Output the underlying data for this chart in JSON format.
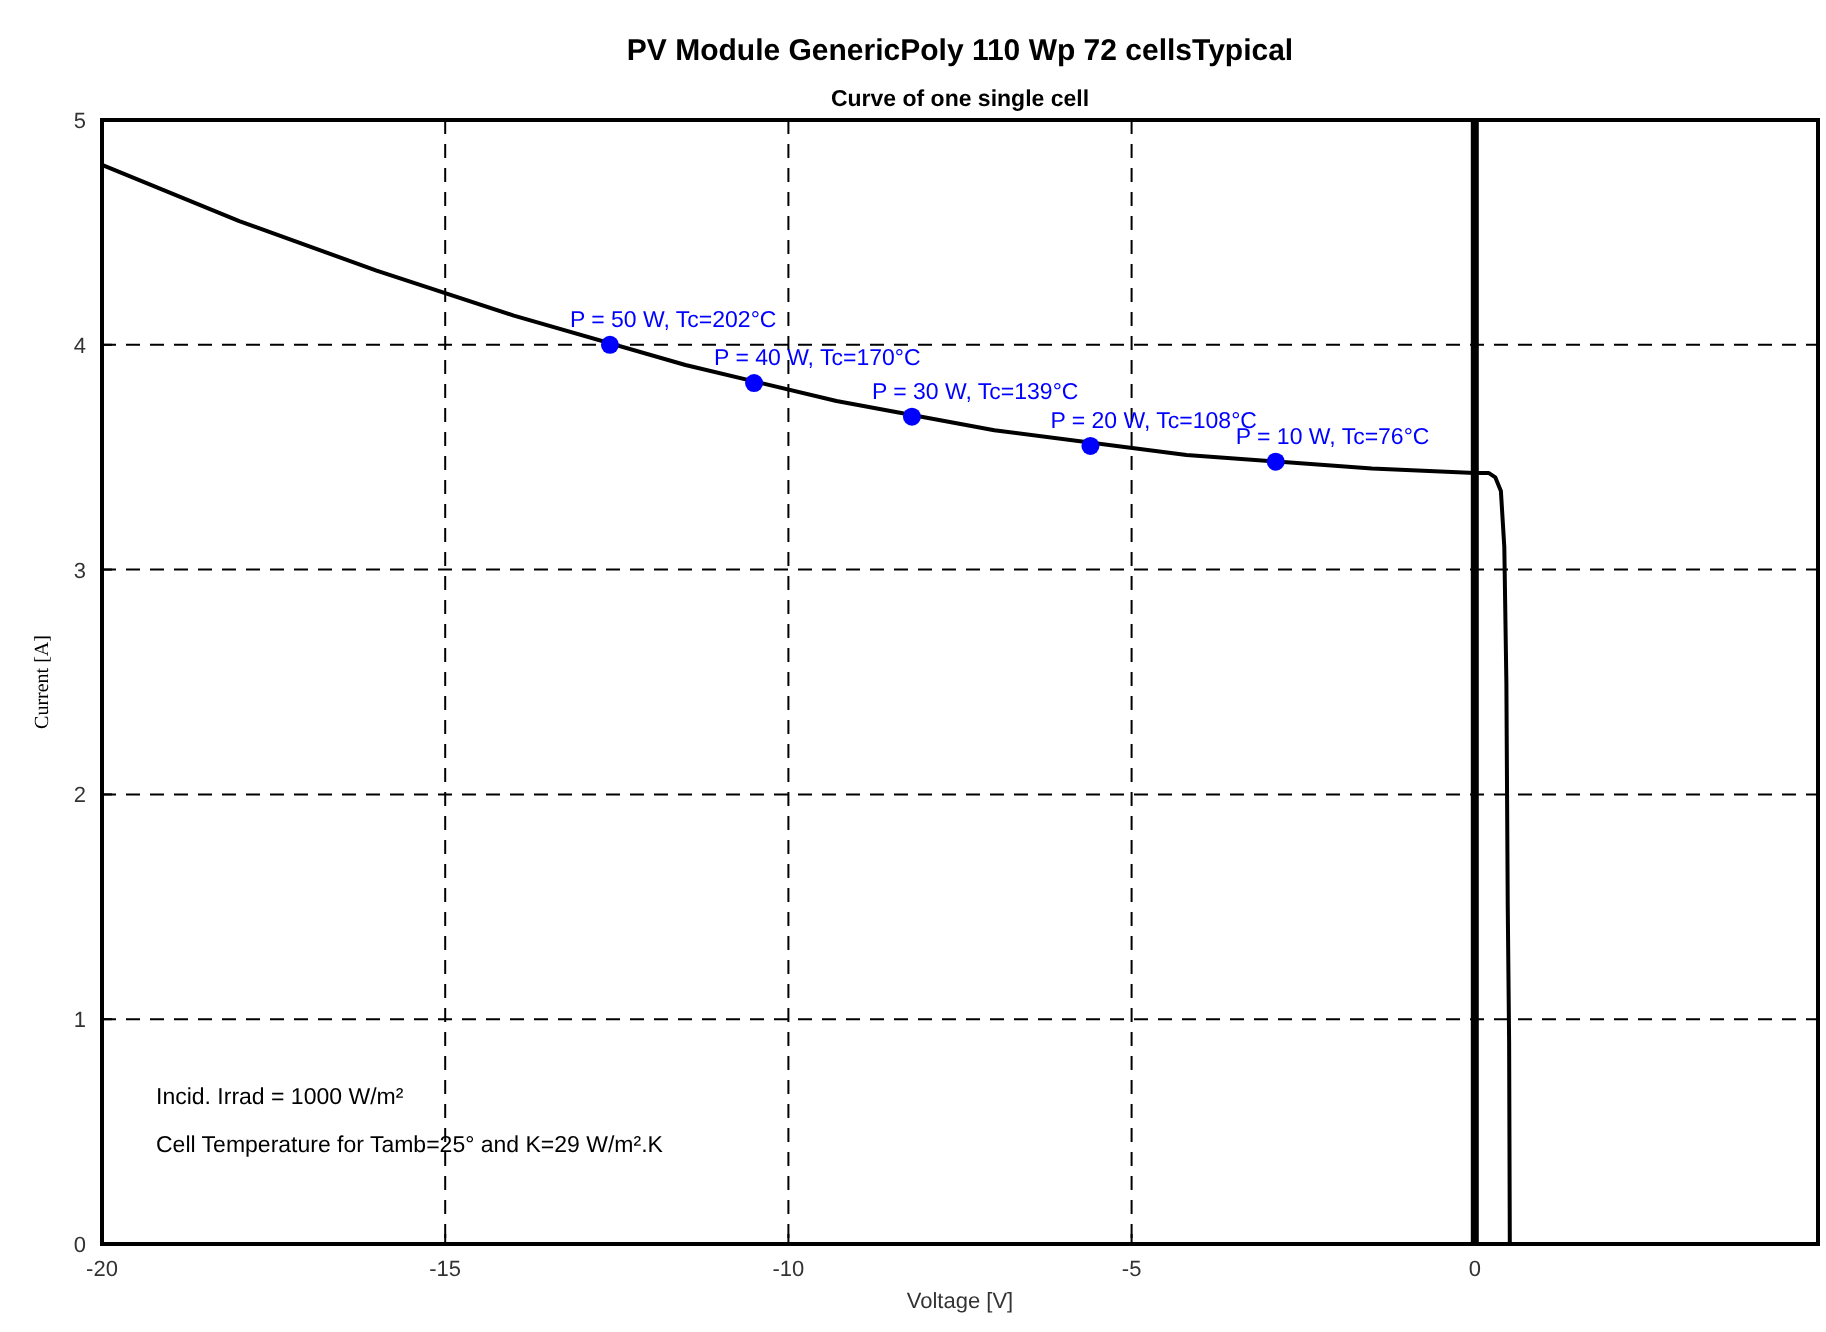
{
  "chart_data": {
    "type": "line",
    "title": "PV Module   GenericPoly 110 Wp  72 cellsTypical",
    "subtitle": "Curve of one single cell",
    "xlabel": "Voltage [V]",
    "ylabel": "Current [A]",
    "xlim": [
      -20,
      5
    ],
    "xticks": [
      -20,
      -15,
      -10,
      -5,
      0
    ],
    "ylim": [
      0,
      5
    ],
    "yticks": [
      0,
      1,
      2,
      3,
      4,
      5
    ],
    "grid": true,
    "series": [
      {
        "color": "#000000",
        "marker": "none",
        "x": [
          -20,
          -18,
          -16,
          -14,
          -11.5,
          -9.3,
          -7,
          -4.2,
          -1.5,
          0,
          0.2,
          0.3,
          0.38,
          0.43,
          0.46,
          0.48,
          0.5,
          0.51
        ],
        "values": [
          4.8,
          4.55,
          4.33,
          4.13,
          3.91,
          3.75,
          3.62,
          3.51,
          3.45,
          3.43,
          3.43,
          3.41,
          3.35,
          3.1,
          2.5,
          1.5,
          0.9,
          0
        ]
      },
      {
        "type": "scatter",
        "color": "#0000ff",
        "marker": "circle",
        "x": [
          -12.6,
          -10.5,
          -8.2,
          -5.6,
          -2.9
        ],
        "values": [
          4.0,
          3.83,
          3.68,
          3.55,
          3.48
        ]
      }
    ],
    "ref_lines": [
      {
        "axis": "x",
        "value": 0,
        "color": "#000000"
      }
    ],
    "annotations": [
      {
        "text": "P = 50 W, Tc=202°C",
        "x": -12.6,
        "y": 4.0
      },
      {
        "text": "P = 40 W, Tc=170°C",
        "x": -10.5,
        "y": 3.83
      },
      {
        "text": "P = 30 W, Tc=139°C",
        "x": -8.2,
        "y": 3.68
      },
      {
        "text": "P = 20 W, Tc=108°C",
        "x": -5.6,
        "y": 3.55
      },
      {
        "text": "P = 10 W, Tc=76°C",
        "x": -2.9,
        "y": 3.48
      },
      "Incid. Irrad = 1000 W/m²",
      "Cell Temperature for  Tamb=25° and  K=29 W/m².K"
    ]
  }
}
